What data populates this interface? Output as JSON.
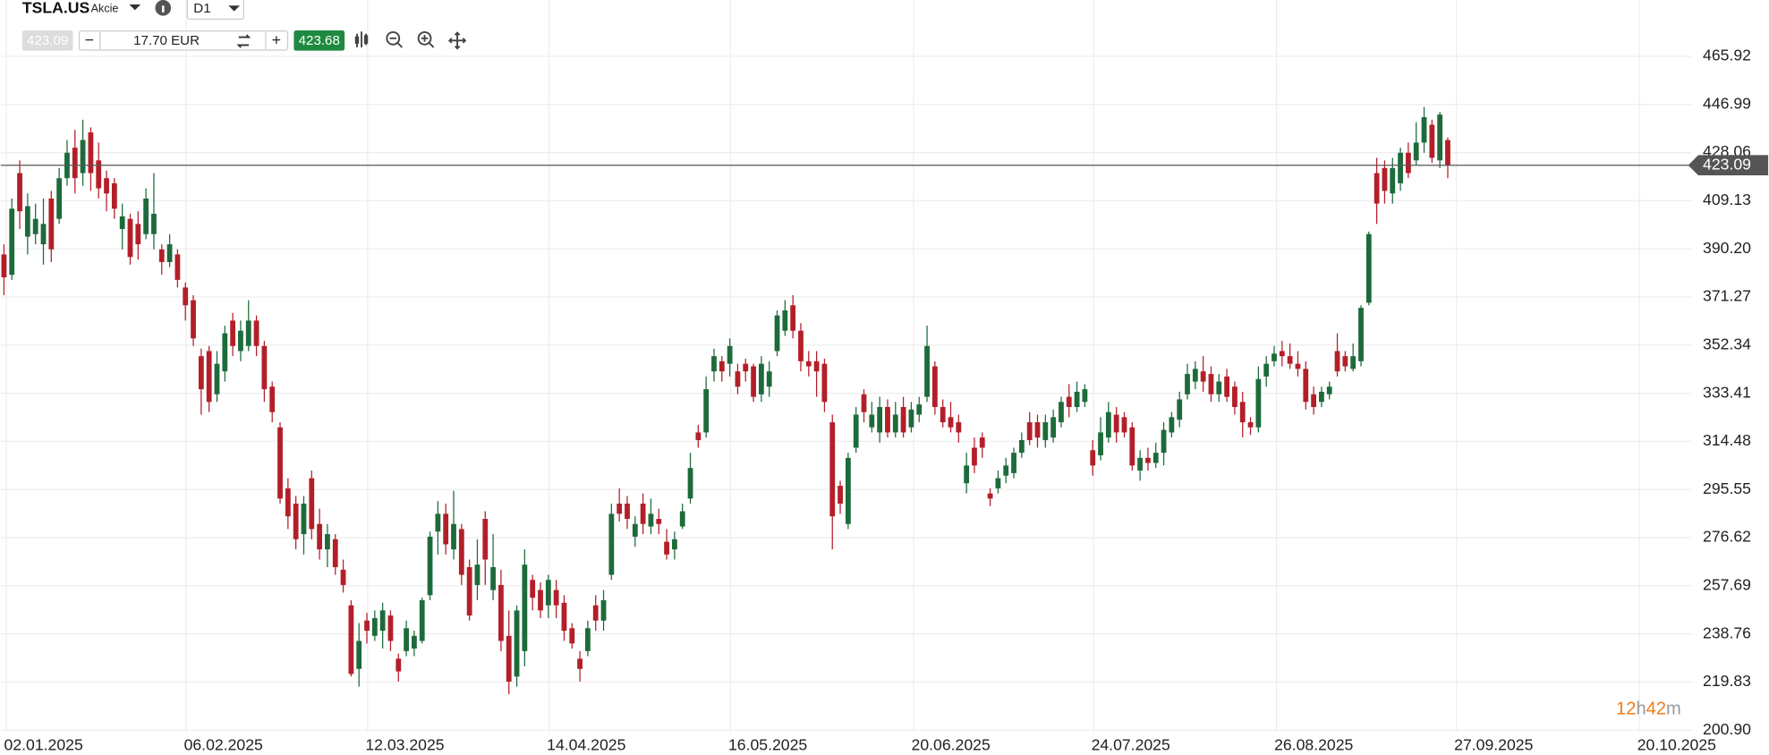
{
  "header": {
    "symbol": "TSLA.US",
    "asset_type": "Akcie",
    "timeframe": "D1",
    "bid": "423.09",
    "volume": "17.70 EUR",
    "ask": "423.68"
  },
  "countdown": [
    "12",
    "h",
    "42",
    "m"
  ],
  "chart_data": {
    "type": "candlestick",
    "up_color": "#1d6b3b",
    "down_color": "#b31f29",
    "grid": true,
    "last_price": {
      "value": 423.09,
      "color": "#555555"
    },
    "xlim": [
      -0.4,
      212.9
    ],
    "xticks": [
      {
        "value": 0.3,
        "label": "02.01.2025"
      },
      {
        "value": 23.1,
        "label": "06.02.2025"
      },
      {
        "value": 46.1,
        "label": "12.03.2025"
      },
      {
        "value": 69.1,
        "label": "14.04.2025"
      },
      {
        "value": 92.1,
        "label": "16.05.2025"
      },
      {
        "value": 115.3,
        "label": "20.06.2025"
      },
      {
        "value": 138.1,
        "label": "24.07.2025"
      },
      {
        "value": 161.3,
        "label": "26.08.2025"
      },
      {
        "value": 184.1,
        "label": "27.09.2025"
      },
      {
        "value": 207.3,
        "label": "20.10.2025"
      }
    ],
    "ylim": [
      196.45,
      488.08
    ],
    "yticks": [
      465.92,
      446.99,
      428.06,
      409.13,
      {
        "value": 390.2,
        "label": "390.20"
      },
      371.27,
      352.34,
      333.41,
      314.48,
      295.55,
      276.62,
      257.69,
      238.76,
      219.83,
      {
        "value": 200.9,
        "label": "200.90"
      }
    ],
    "ohlc": [
      [
        388,
        392,
        372,
        379
      ],
      [
        380,
        410,
        378,
        406
      ],
      [
        420,
        425,
        398,
        405
      ],
      [
        395,
        412,
        388,
        407
      ],
      [
        396,
        408,
        392,
        402
      ],
      [
        392,
        410,
        384,
        400
      ],
      [
        410,
        413,
        385,
        390
      ],
      [
        402,
        422,
        400,
        418
      ],
      [
        418,
        433,
        415,
        428
      ],
      [
        430,
        437,
        412,
        418
      ],
      [
        420,
        441,
        415,
        433
      ],
      [
        436,
        438,
        413,
        420
      ],
      [
        425,
        432,
        410,
        414
      ],
      [
        418,
        421,
        405,
        412
      ],
      [
        416,
        418,
        402,
        406
      ],
      [
        398,
        408,
        390,
        403
      ],
      [
        402,
        404,
        384,
        387
      ],
      [
        400,
        405,
        386,
        392
      ],
      [
        396,
        414,
        394,
        410
      ],
      [
        396,
        420,
        390,
        404
      ],
      [
        390,
        392,
        380,
        385
      ],
      [
        385,
        396,
        383,
        392
      ],
      [
        388,
        390,
        375,
        378
      ],
      [
        375,
        377,
        362,
        368
      ],
      [
        370,
        372,
        352,
        355
      ],
      [
        348,
        351,
        325,
        335
      ],
      [
        350,
        352,
        326,
        330
      ],
      [
        333,
        350,
        330,
        345
      ],
      [
        342,
        360,
        338,
        357
      ],
      [
        362,
        365,
        348,
        352
      ],
      [
        350,
        362,
        346,
        358
      ],
      [
        352,
        370,
        350,
        362
      ],
      [
        362,
        364,
        348,
        352
      ],
      [
        352,
        354,
        330,
        335
      ],
      [
        336,
        338,
        322,
        326
      ],
      [
        320,
        322,
        290,
        292
      ],
      [
        296,
        300,
        280,
        285
      ],
      [
        290,
        293,
        272,
        276
      ],
      [
        278,
        293,
        270,
        290
      ],
      [
        300,
        303,
        276,
        280
      ],
      [
        282,
        288,
        268,
        272
      ],
      [
        272,
        282,
        265,
        278
      ],
      [
        276,
        278,
        262,
        265
      ],
      [
        264,
        268,
        255,
        258
      ],
      [
        250,
        252,
        222,
        223
      ],
      [
        225,
        243,
        218,
        236
      ],
      [
        244,
        247,
        235,
        240
      ],
      [
        238,
        248,
        236,
        245
      ],
      [
        240,
        251,
        233,
        248
      ],
      [
        246,
        248,
        232,
        236
      ],
      [
        229,
        231,
        220,
        224
      ],
      [
        232,
        244,
        230,
        241
      ],
      [
        233,
        240,
        230,
        238
      ],
      [
        236,
        253,
        235,
        252
      ],
      [
        254,
        279,
        252,
        277
      ],
      [
        279,
        291,
        270,
        286
      ],
      [
        286,
        290,
        270,
        274
      ],
      [
        272,
        295,
        268,
        282
      ],
      [
        280,
        282,
        258,
        262
      ],
      [
        265,
        268,
        244,
        246
      ],
      [
        258,
        276,
        252,
        266
      ],
      [
        284,
        287,
        258,
        268
      ],
      [
        256,
        278,
        252,
        265
      ],
      [
        258,
        264,
        232,
        236
      ],
      [
        238,
        248,
        215,
        220
      ],
      [
        222,
        250,
        218,
        248
      ],
      [
        232,
        272,
        226,
        266
      ],
      [
        260,
        262,
        248,
        253
      ],
      [
        256,
        259,
        245,
        248
      ],
      [
        250,
        262,
        245,
        260
      ],
      [
        256,
        260,
        245,
        250
      ],
      [
        251,
        254,
        236,
        240
      ],
      [
        241,
        243,
        233,
        235
      ],
      [
        229,
        232,
        220,
        225
      ],
      [
        232,
        244,
        230,
        241
      ],
      [
        250,
        254,
        240,
        244
      ],
      [
        244,
        256,
        240,
        252
      ],
      [
        262,
        290,
        260,
        286
      ],
      [
        290,
        296,
        283,
        286
      ],
      [
        290,
        293,
        280,
        284
      ],
      [
        277,
        285,
        273,
        282
      ],
      [
        290,
        294,
        278,
        282
      ],
      [
        281,
        292,
        278,
        286
      ],
      [
        284,
        288,
        278,
        282
      ],
      [
        275,
        280,
        268,
        270
      ],
      [
        272,
        279,
        268,
        276
      ],
      [
        281,
        290,
        280,
        287
      ],
      [
        292,
        310,
        290,
        304
      ],
      [
        318,
        321,
        312,
        315
      ],
      [
        318,
        340,
        316,
        335
      ],
      [
        342,
        351,
        338,
        348
      ],
      [
        346,
        348,
        338,
        342
      ],
      [
        345,
        355,
        340,
        352
      ],
      [
        342,
        345,
        333,
        336
      ],
      [
        345,
        347,
        338,
        342
      ],
      [
        344,
        345,
        330,
        332
      ],
      [
        333,
        348,
        330,
        345
      ],
      [
        336,
        346,
        332,
        342
      ],
      [
        350,
        366,
        348,
        364
      ],
      [
        358,
        370,
        356,
        366
      ],
      [
        368,
        372,
        355,
        358
      ],
      [
        358,
        361,
        342,
        346
      ],
      [
        346,
        350,
        340,
        344
      ],
      [
        346,
        350,
        332,
        342
      ],
      [
        345,
        347,
        326,
        330
      ],
      [
        322,
        325,
        272,
        285
      ],
      [
        297,
        299,
        286,
        290
      ],
      [
        282,
        310,
        280,
        308
      ],
      [
        312,
        328,
        310,
        325
      ],
      [
        333,
        335,
        322,
        326
      ],
      [
        320,
        330,
        318,
        325
      ],
      [
        318,
        332,
        314,
        328
      ],
      [
        328,
        331,
        316,
        318
      ],
      [
        318,
        330,
        316,
        325
      ],
      [
        328,
        332,
        316,
        318
      ],
      [
        320,
        330,
        318,
        327
      ],
      [
        325,
        332,
        322,
        329
      ],
      [
        332,
        360,
        330,
        352
      ],
      [
        344,
        346,
        325,
        328
      ],
      [
        328,
        331,
        320,
        322
      ],
      [
        324,
        330,
        318,
        320
      ],
      [
        322,
        325,
        314,
        318
      ],
      [
        298,
        310,
        294,
        305
      ],
      [
        312,
        316,
        302,
        305
      ],
      [
        316,
        318,
        308,
        312
      ],
      [
        294,
        296,
        289,
        292
      ],
      [
        296,
        303,
        294,
        300
      ],
      [
        301,
        308,
        298,
        305
      ],
      [
        302,
        312,
        300,
        310
      ],
      [
        310,
        318,
        308,
        315
      ],
      [
        322,
        326,
        313,
        315
      ],
      [
        322,
        325,
        312,
        316
      ],
      [
        315,
        325,
        312,
        322
      ],
      [
        316,
        327,
        314,
        324
      ],
      [
        322,
        332,
        320,
        330
      ],
      [
        332,
        337,
        324,
        328
      ],
      [
        328,
        338,
        326,
        334
      ],
      [
        330,
        337,
        328,
        335
      ],
      [
        311,
        315,
        301,
        305
      ],
      [
        309,
        324,
        307,
        318
      ],
      [
        316,
        330,
        314,
        326
      ],
      [
        325,
        328,
        314,
        318
      ],
      [
        324,
        326,
        316,
        318
      ],
      [
        320,
        322,
        303,
        305
      ],
      [
        303,
        311,
        299,
        308
      ],
      [
        308,
        312,
        303,
        306
      ],
      [
        306,
        314,
        304,
        310
      ],
      [
        310,
        322,
        305,
        319
      ],
      [
        318,
        326,
        316,
        324
      ],
      [
        323,
        334,
        320,
        331
      ],
      [
        333,
        345,
        331,
        341
      ],
      [
        338,
        346,
        335,
        343
      ],
      [
        342,
        348,
        334,
        338
      ],
      [
        341,
        344,
        330,
        333
      ],
      [
        333,
        341,
        330,
        338
      ],
      [
        340,
        343,
        330,
        332
      ],
      [
        336,
        338,
        325,
        328
      ],
      [
        330,
        334,
        316,
        322
      ],
      [
        322,
        324,
        317,
        320
      ],
      [
        320,
        344,
        318,
        339
      ],
      [
        340,
        348,
        336,
        345
      ],
      [
        346,
        352,
        344,
        349
      ],
      [
        350,
        354,
        344,
        348
      ],
      [
        348,
        353,
        343,
        345
      ],
      [
        345,
        350,
        340,
        343
      ],
      [
        343,
        346,
        327,
        330
      ],
      [
        333,
        336,
        325,
        328
      ],
      [
        330,
        336,
        328,
        334
      ],
      [
        333,
        338,
        331,
        336
      ],
      [
        350,
        357,
        340,
        342
      ],
      [
        348,
        350,
        342,
        344
      ],
      [
        343,
        353,
        342,
        348
      ],
      [
        346,
        368,
        344,
        367
      ],
      [
        369,
        397,
        368,
        396
      ],
      [
        420,
        426,
        400,
        408
      ],
      [
        422,
        425,
        408,
        413
      ],
      [
        412,
        426,
        408,
        422
      ],
      [
        416,
        430,
        413,
        428
      ],
      [
        428,
        432,
        418,
        420
      ],
      [
        425,
        440,
        423,
        432
      ],
      [
        432,
        446,
        428,
        442
      ],
      [
        439,
        441,
        424,
        426
      ],
      [
        425,
        444,
        422,
        443
      ],
      [
        433,
        434,
        418,
        423.09
      ]
    ]
  }
}
